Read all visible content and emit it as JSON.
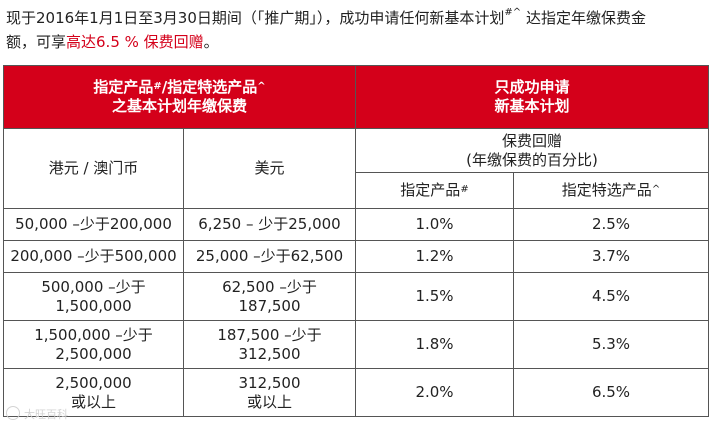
{
  "intro": {
    "line1_a": "现于2016年1月1日至3月30日期间（「推广期」），成功申请任何新基本计划",
    "line1_sup": "#^",
    "line1_b": "达指定年缴保费金",
    "line2_a": "额，可享",
    "line2_highlight": "高达6.5 % 保费回赠",
    "line2_b": "。"
  },
  "table": {
    "header": {
      "left_line1": "指定产品",
      "left_sup1": "#",
      "left_mid": "/指定特选产品",
      "left_sup2": "^",
      "left_line2": "之基本计划年缴保费",
      "right_line1": "只成功申请",
      "right_line2": "新基本计划"
    },
    "subheader": {
      "col_hkd": "港元 / 澳门币",
      "col_usd": "美元",
      "rebate_line1": "保费回赠",
      "rebate_line2": "(年缴保费的百分比)",
      "col_designated": "指定产品",
      "col_designated_sup": "#",
      "col_selected": "指定特选产品",
      "col_selected_sup": "^"
    },
    "rows": [
      {
        "hkd": "50,000 –少于200,000",
        "hkd2": "",
        "usd": "6,250 – 少于25,000",
        "usd2": "",
        "designated": "1.0%",
        "selected": "2.5%"
      },
      {
        "hkd": "200,000 –少于500,000",
        "hkd2": "",
        "usd": "25,000 –少于62,500",
        "usd2": "",
        "designated": "1.2%",
        "selected": "3.7%"
      },
      {
        "hkd": "500,000 –少于",
        "hkd2": "1,500,000",
        "usd": "62,500 –少于",
        "usd2": "187,500",
        "designated": "1.5%",
        "selected": "4.5%"
      },
      {
        "hkd": "1,500,000 –少于",
        "hkd2": "2,500,000",
        "usd": "187,500 –少于",
        "usd2": "312,500",
        "designated": "1.8%",
        "selected": "5.3%"
      },
      {
        "hkd": "2,500,000",
        "hkd2": "或以上",
        "usd": "312,500",
        "usd2": "或以上",
        "designated": "2.0%",
        "selected": "6.5%"
      }
    ]
  },
  "watermark": {
    "text": "大旺百科"
  },
  "colors": {
    "header_red": "#d4001a",
    "highlight_red": "#d4001a",
    "border": "#555555"
  }
}
